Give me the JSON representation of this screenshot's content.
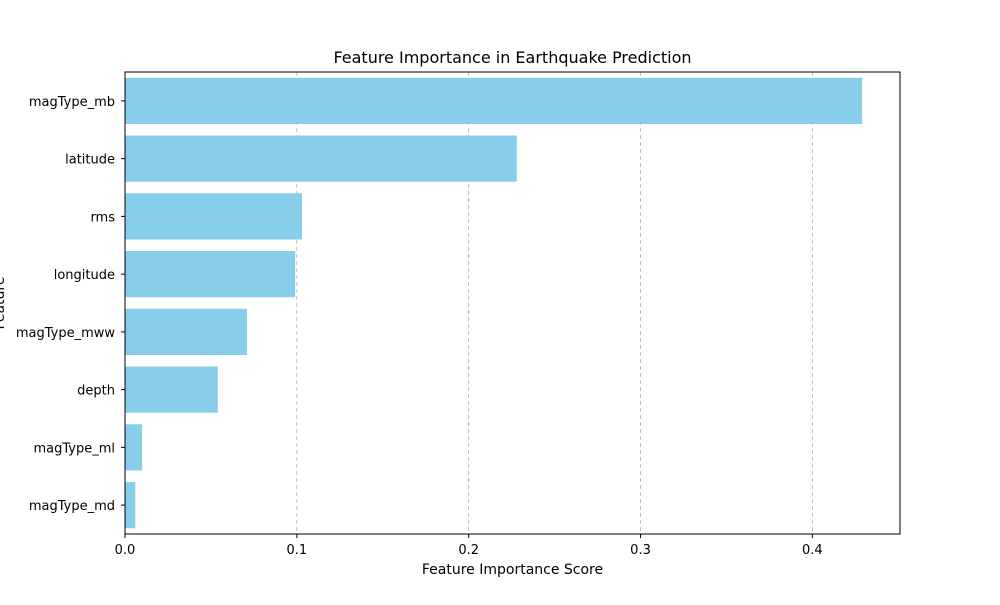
{
  "chart_data": {
    "type": "bar",
    "orientation": "horizontal",
    "title": "Feature Importance in Earthquake Prediction",
    "xlabel": "Feature Importance Score",
    "ylabel": "Feature",
    "categories": [
      "magType_mb",
      "latitude",
      "rms",
      "longitude",
      "magType_mww",
      "depth",
      "magType_ml",
      "magType_md"
    ],
    "values": [
      0.429,
      0.228,
      0.103,
      0.099,
      0.071,
      0.054,
      0.01,
      0.006
    ],
    "xlim": [
      0,
      0.451
    ],
    "xticks": [
      0.0,
      0.1,
      0.2,
      0.3,
      0.4
    ],
    "xtick_labels": [
      "0.0",
      "0.1",
      "0.2",
      "0.3",
      "0.4"
    ],
    "grid": "x-dashed",
    "bar_color": "#87ceeb"
  }
}
